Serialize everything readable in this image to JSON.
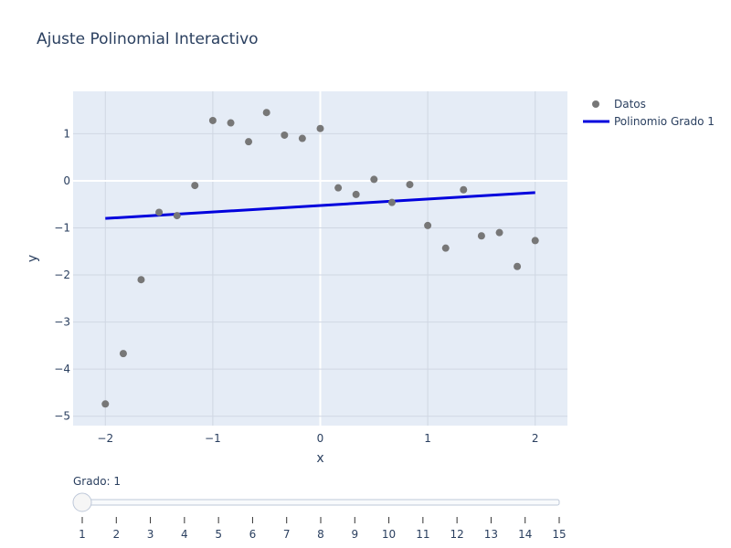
{
  "chart_data": {
    "type": "scatter",
    "title": "Ajuste Polinomial Interactivo",
    "xlabel": "x",
    "ylabel": "y",
    "xlim": [
      -2.3,
      2.3
    ],
    "ylim": [
      -5.2,
      1.9
    ],
    "xticks": [
      -2,
      -1,
      0,
      1,
      2
    ],
    "xtick_labels": [
      "−2",
      "−1",
      "0",
      "1",
      "2"
    ],
    "yticks": [
      1,
      0,
      -1,
      -2,
      -3,
      -4,
      -5
    ],
    "ytick_labels": [
      "1",
      "0",
      "−1",
      "−2",
      "−3",
      "−4",
      "−5"
    ],
    "grid": true,
    "legend_position": "top-right",
    "series": [
      {
        "name": "Datos",
        "mode": "markers",
        "color": "#777777",
        "x": [
          -2.0,
          -1.833,
          -1.667,
          -1.5,
          -1.333,
          -1.167,
          -1.0,
          -0.833,
          -0.667,
          -0.5,
          -0.333,
          -0.167,
          0.0,
          0.167,
          0.333,
          0.5,
          0.667,
          0.833,
          1.0,
          1.167,
          1.333,
          1.5,
          1.667,
          1.833,
          2.0
        ],
        "y": [
          -4.74,
          -3.67,
          -2.1,
          -0.67,
          -0.74,
          -0.1,
          1.28,
          1.23,
          0.83,
          1.45,
          0.97,
          0.9,
          1.11,
          -0.15,
          -0.29,
          0.03,
          -0.46,
          -0.08,
          -0.95,
          -1.43,
          -0.19,
          -1.17,
          -1.1,
          -1.82,
          -1.27
        ]
      },
      {
        "name": "Polinomio Grado 1",
        "mode": "lines",
        "color": "#0000dd",
        "x": [
          -2.0,
          2.0
        ],
        "y": [
          -0.8,
          -0.25
        ]
      }
    ]
  },
  "slider": {
    "label": "Grado: 1",
    "value": 1,
    "min": 1,
    "max": 15,
    "ticks": [
      "1",
      "2",
      "3",
      "4",
      "5",
      "6",
      "7",
      "8",
      "9",
      "10",
      "11",
      "12",
      "13",
      "14",
      "15"
    ]
  }
}
